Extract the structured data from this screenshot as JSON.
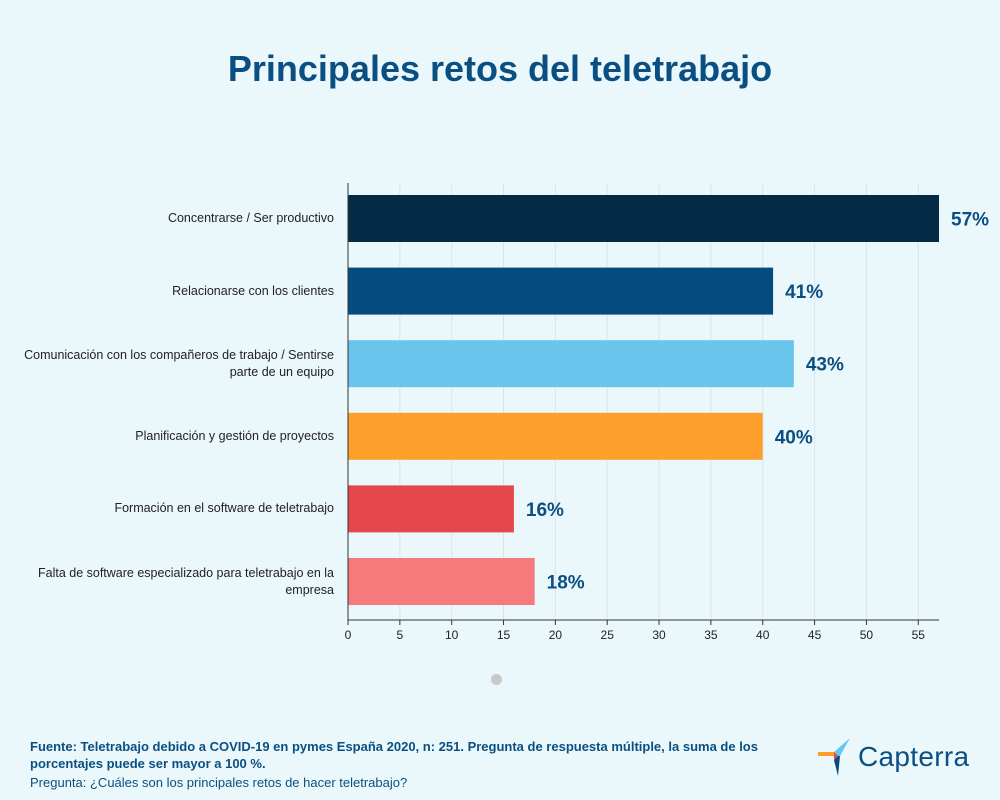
{
  "chart_data": {
    "type": "bar",
    "orientation": "horizontal",
    "title": "Principales retos del teletrabajo",
    "categories": [
      "Concentrarse / Ser productivo",
      "Relacionarse con los clientes",
      "Comunicación con los compañeros de trabajo / Sentirse parte de un equipo",
      "Planificación y gestión de proyectos",
      "Formación en el software de teletrabajo",
      "Falta de software especializado para teletrabajo en la empresa"
    ],
    "values": [
      57,
      41,
      43,
      40,
      16,
      18
    ],
    "value_labels": [
      "57%",
      "41%",
      "43%",
      "40%",
      "16%",
      "18%"
    ],
    "colors": [
      "#032b46",
      "#054c7e",
      "#6ac5ec",
      "#fe9f2b",
      "#e5484a",
      "#f47a7b"
    ],
    "xlim": [
      0,
      57
    ],
    "xticks": [
      0,
      5,
      10,
      15,
      20,
      25,
      30,
      35,
      40,
      45,
      50,
      55
    ],
    "grid": true
  },
  "footer": {
    "source": "Fuente: Teletrabajo debido a COVID-19 en pymes España 2020, n: 251. Pregunta de respuesta múltiple, la suma de los porcentajes puede ser mayor a 100 %.",
    "question": "Pregunta: ¿Cuáles son los principales retos de hacer teletrabajo?"
  },
  "logo": {
    "text": "Capterra",
    "colors": [
      "#ff9d28",
      "#68c5ed",
      "#044d80",
      "#e54747"
    ]
  }
}
